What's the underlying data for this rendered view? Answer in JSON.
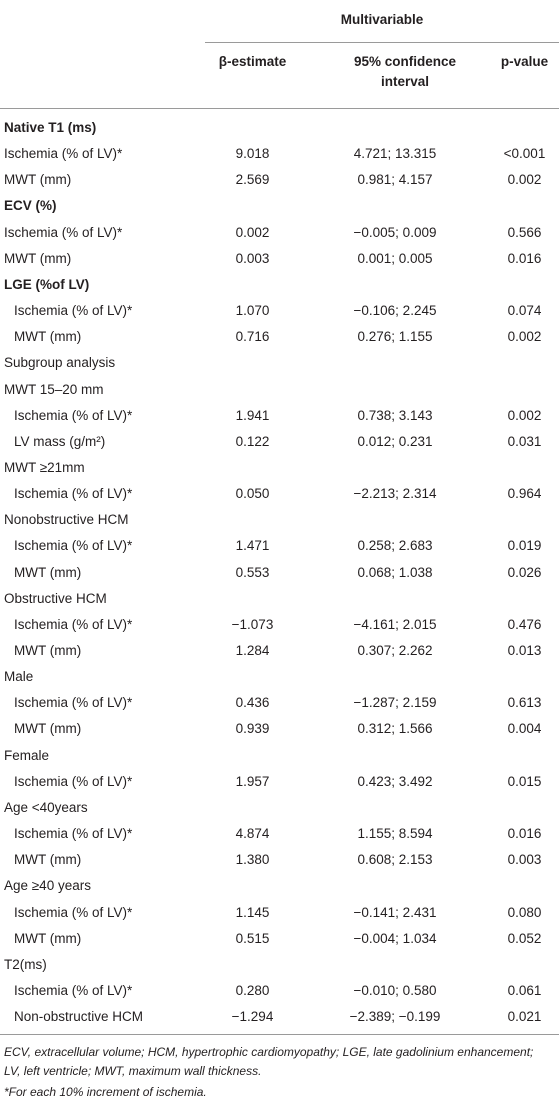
{
  "header": {
    "group": "Multivariable",
    "columns": [
      "β-estimate",
      "95% confidence interval",
      "p-value"
    ]
  },
  "sections": [
    {
      "heading": "Native T1 (ms)",
      "rows": [
        {
          "label": "Ischemia (% of LV)*",
          "cells": [
            "9.018",
            "4.721; 13.315",
            "<0.001"
          ]
        },
        {
          "label": "MWT (mm)",
          "cells": [
            "2.569",
            "0.981; 4.157",
            "0.002"
          ]
        }
      ]
    },
    {
      "heading": "ECV (%)",
      "rows": [
        {
          "label": "Ischemia (% of LV)*",
          "cells": [
            "0.002",
            "−0.005; 0.009",
            "0.566"
          ]
        },
        {
          "label": "MWT (mm)",
          "cells": [
            "0.003",
            "0.001; 0.005",
            "0.016"
          ]
        }
      ]
    },
    {
      "heading": "LGE (%of LV)",
      "indent": true,
      "rows": [
        {
          "label": "Ischemia (% of LV)*",
          "cells": [
            "1.070",
            "−0.106; 2.245",
            "0.074"
          ]
        },
        {
          "label": "MWT (mm)",
          "cells": [
            "0.716",
            "0.276; 1.155",
            "0.002"
          ]
        }
      ]
    }
  ],
  "subgroup": {
    "title": "Subgroup analysis",
    "groups": [
      {
        "heading": "MWT 15–20 mm",
        "rows": [
          {
            "label": "Ischemia (% of LV)*",
            "cells": [
              "1.941",
              "0.738; 3.143",
              "0.002"
            ]
          },
          {
            "label": "LV mass (g/m²)",
            "cells": [
              "0.122",
              "0.012; 0.231",
              "0.031"
            ]
          }
        ]
      },
      {
        "heading": "MWT ≥21mm",
        "rows": [
          {
            "label": "Ischemia (% of LV)*",
            "cells": [
              "0.050",
              "−2.213; 2.314",
              "0.964"
            ]
          }
        ]
      },
      {
        "heading": "Nonobstructive HCM",
        "rows": [
          {
            "label": "Ischemia (% of LV)*",
            "cells": [
              "1.471",
              "0.258; 2.683",
              "0.019"
            ]
          },
          {
            "label": "MWT (mm)",
            "cells": [
              "0.553",
              "0.068; 1.038",
              "0.026"
            ]
          }
        ]
      },
      {
        "heading": "Obstructive HCM",
        "rows": [
          {
            "label": "Ischemia (% of LV)*",
            "cells": [
              "−1.073",
              "−4.161; 2.015",
              "0.476"
            ]
          },
          {
            "label": "MWT (mm)",
            "cells": [
              "1.284",
              "0.307; 2.262",
              "0.013"
            ]
          }
        ]
      },
      {
        "heading": "Male",
        "rows": [
          {
            "label": "Ischemia (% of LV)*",
            "cells": [
              "0.436",
              "−1.287; 2.159",
              "0.613"
            ]
          },
          {
            "label": "MWT (mm)",
            "cells": [
              "0.939",
              "0.312; 1.566",
              "0.004"
            ]
          }
        ]
      },
      {
        "heading": "Female",
        "rows": [
          {
            "label": "Ischemia (% of LV)*",
            "cells": [
              "1.957",
              "0.423; 3.492",
              "0.015"
            ]
          }
        ]
      },
      {
        "heading": "Age <40years",
        "rows": [
          {
            "label": "Ischemia (% of LV)*",
            "cells": [
              "4.874",
              "1.155; 8.594",
              "0.016"
            ]
          },
          {
            "label": "MWT (mm)",
            "cells": [
              "1.380",
              "0.608; 2.153",
              "0.003"
            ]
          }
        ]
      },
      {
        "heading": "Age ≥40 years",
        "rows": [
          {
            "label": "Ischemia (% of LV)*",
            "cells": [
              "1.145",
              "−0.141; 2.431",
              "0.080"
            ]
          },
          {
            "label": "MWT (mm)",
            "cells": [
              "0.515",
              "−0.004; 1.034",
              "0.052"
            ]
          }
        ]
      },
      {
        "heading": "T2(ms)",
        "rows": [
          {
            "label": "Ischemia (% of LV)*",
            "cells": [
              "0.280",
              "−0.010; 0.580",
              "0.061"
            ]
          },
          {
            "label": "Non-obstructive HCM",
            "cells": [
              "−1.294",
              "−2.389; −0.199",
              "0.021"
            ]
          }
        ]
      }
    ]
  },
  "footnotes": [
    "ECV, extracellular volume; HCM, hypertrophic cardiomyopathy; LGE, late gadolinium enhancement; LV, left ventricle; MWT, maximum wall thickness.",
    "*For each 10% increment of ischemia."
  ]
}
